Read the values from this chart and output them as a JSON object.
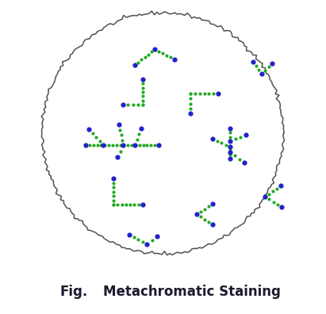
{
  "title_fig": "Fig.",
  "title_main": "Metachromatic Staining",
  "title_fontsize": 12,
  "title_fontweight": "bold",
  "background_color": "#ffffff",
  "circle_color": "#333333",
  "gc": "#22aa22",
  "bc": "#2222cc",
  "lw": 1.8,
  "ms_green": 3.5,
  "ms_blue": 4.5
}
